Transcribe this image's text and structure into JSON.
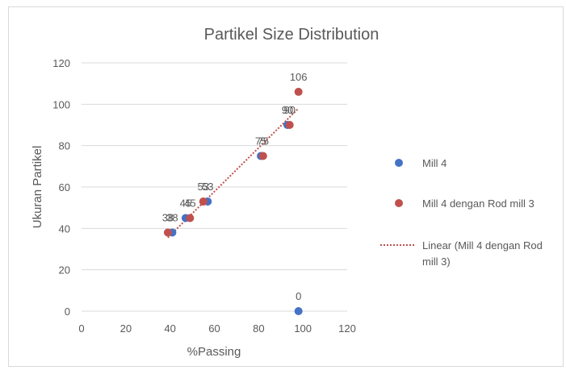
{
  "chart_data": {
    "type": "scatter",
    "title": "Partikel Size Distribution",
    "xlabel": "%Passing",
    "ylabel": "Ukuran Partikel",
    "xlim": [
      0,
      120
    ],
    "ylim": [
      0,
      120
    ],
    "xticks": [
      0,
      20,
      40,
      60,
      80,
      100,
      120
    ],
    "yticks": [
      0,
      20,
      40,
      60,
      80,
      100,
      120
    ],
    "grid": "horizontal",
    "legend_position": "right",
    "series": [
      {
        "name": "Mill 4",
        "color": "#4472C4",
        "marker": "circle",
        "points": [
          {
            "x": 41,
            "y": 38,
            "label": "38"
          },
          {
            "x": 47,
            "y": 45,
            "label": "45"
          },
          {
            "x": 57,
            "y": 53,
            "label": "53"
          },
          {
            "x": 81,
            "y": 75,
            "label": "75"
          },
          {
            "x": 93,
            "y": 90,
            "label": "90"
          },
          {
            "x": 98,
            "y": 0,
            "label": "0"
          }
        ]
      },
      {
        "name": "Mill 4 dengan Rod mill 3",
        "color": "#C0504D",
        "marker": "circle",
        "points": [
          {
            "x": 39,
            "y": 38,
            "label": "38"
          },
          {
            "x": 49,
            "y": 45,
            "label": "45"
          },
          {
            "x": 55,
            "y": 53,
            "label": "53"
          },
          {
            "x": 82,
            "y": 75,
            "label": "75"
          },
          {
            "x": 94,
            "y": 90,
            "label": "90"
          },
          {
            "x": 98,
            "y": 106,
            "label": "106"
          }
        ]
      }
    ],
    "trendline": {
      "name": "Linear (Mill 4 dengan Rod mill 3)",
      "name_lines": [
        "Linear (Mill 4 dengan Rod",
        "mill 3)"
      ],
      "type": "linear",
      "of_series": "Mill 4 dengan Rod mill 3",
      "color": "#C0504D",
      "style": "dotted"
    }
  }
}
